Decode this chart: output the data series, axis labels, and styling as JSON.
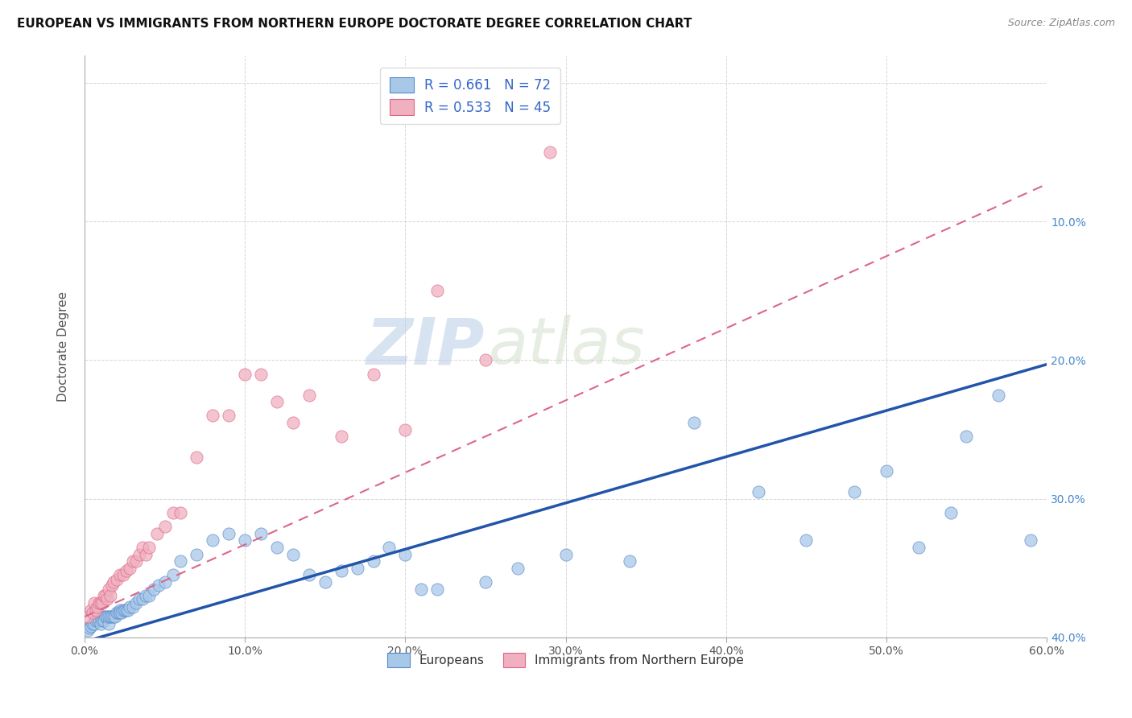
{
  "title": "EUROPEAN VS IMMIGRANTS FROM NORTHERN EUROPE DOCTORATE DEGREE CORRELATION CHART",
  "source": "Source: ZipAtlas.com",
  "ylabel": "Doctorate Degree",
  "xlim": [
    0.0,
    0.6
  ],
  "ylim": [
    0.0,
    0.42
  ],
  "xticks": [
    0.0,
    0.1,
    0.2,
    0.3,
    0.4,
    0.5,
    0.6
  ],
  "yticks": [
    0.0,
    0.1,
    0.2,
    0.3,
    0.4
  ],
  "xtick_labels": [
    "0.0%",
    "10.0%",
    "20.0%",
    "30.0%",
    "40.0%",
    "50.0%",
    "60.0%"
  ],
  "ytick_labels_right": [
    "40.0%",
    "30.0%",
    "20.0%",
    "10.0%",
    ""
  ],
  "blue_R": 0.661,
  "blue_N": 72,
  "pink_R": 0.533,
  "pink_N": 45,
  "blue_color": "#a8c8e8",
  "pink_color": "#f0b0c0",
  "blue_edge_color": "#5588cc",
  "pink_edge_color": "#dd6688",
  "blue_line_color": "#2255aa",
  "pink_line_color": "#dd6688",
  "watermark_zip": "ZIP",
  "watermark_atlas": "atlas",
  "legend_label_blue": "Europeans",
  "legend_label_pink": "Immigrants from Northern Europe",
  "blue_x": [
    0.002,
    0.003,
    0.004,
    0.005,
    0.006,
    0.007,
    0.008,
    0.009,
    0.01,
    0.01,
    0.011,
    0.012,
    0.012,
    0.013,
    0.014,
    0.015,
    0.015,
    0.016,
    0.017,
    0.018,
    0.019,
    0.02,
    0.021,
    0.022,
    0.022,
    0.023,
    0.024,
    0.025,
    0.026,
    0.027,
    0.028,
    0.03,
    0.032,
    0.034,
    0.036,
    0.038,
    0.04,
    0.043,
    0.046,
    0.05,
    0.055,
    0.06,
    0.07,
    0.08,
    0.09,
    0.1,
    0.11,
    0.12,
    0.13,
    0.14,
    0.15,
    0.16,
    0.17,
    0.18,
    0.19,
    0.2,
    0.21,
    0.22,
    0.25,
    0.27,
    0.3,
    0.34,
    0.38,
    0.42,
    0.45,
    0.48,
    0.5,
    0.52,
    0.54,
    0.55,
    0.57,
    0.59
  ],
  "blue_y": [
    0.005,
    0.007,
    0.008,
    0.01,
    0.01,
    0.012,
    0.012,
    0.013,
    0.01,
    0.015,
    0.012,
    0.015,
    0.012,
    0.015,
    0.015,
    0.01,
    0.015,
    0.015,
    0.015,
    0.015,
    0.015,
    0.018,
    0.018,
    0.02,
    0.018,
    0.018,
    0.02,
    0.02,
    0.02,
    0.02,
    0.022,
    0.022,
    0.025,
    0.028,
    0.028,
    0.03,
    0.03,
    0.035,
    0.038,
    0.04,
    0.045,
    0.055,
    0.06,
    0.07,
    0.075,
    0.07,
    0.075,
    0.065,
    0.06,
    0.045,
    0.04,
    0.048,
    0.05,
    0.055,
    0.065,
    0.06,
    0.035,
    0.035,
    0.04,
    0.05,
    0.06,
    0.055,
    0.155,
    0.105,
    0.07,
    0.105,
    0.12,
    0.065,
    0.09,
    0.145,
    0.175,
    0.07
  ],
  "pink_x": [
    0.002,
    0.004,
    0.005,
    0.006,
    0.007,
    0.008,
    0.009,
    0.01,
    0.011,
    0.012,
    0.013,
    0.014,
    0.015,
    0.016,
    0.017,
    0.018,
    0.02,
    0.022,
    0.024,
    0.026,
    0.028,
    0.03,
    0.032,
    0.034,
    0.036,
    0.038,
    0.04,
    0.045,
    0.05,
    0.055,
    0.06,
    0.07,
    0.08,
    0.09,
    0.1,
    0.11,
    0.12,
    0.13,
    0.14,
    0.16,
    0.18,
    0.2,
    0.22,
    0.25,
    0.29
  ],
  "pink_y": [
    0.015,
    0.02,
    0.018,
    0.025,
    0.02,
    0.022,
    0.025,
    0.025,
    0.025,
    0.03,
    0.03,
    0.028,
    0.035,
    0.03,
    0.038,
    0.04,
    0.042,
    0.045,
    0.045,
    0.048,
    0.05,
    0.055,
    0.055,
    0.06,
    0.065,
    0.06,
    0.065,
    0.075,
    0.08,
    0.09,
    0.09,
    0.13,
    0.16,
    0.16,
    0.19,
    0.19,
    0.17,
    0.155,
    0.175,
    0.145,
    0.19,
    0.15,
    0.25,
    0.2,
    0.35
  ],
  "blue_line_slope": 0.3333,
  "blue_line_intercept": -0.003,
  "pink_line_slope": 0.52,
  "pink_line_intercept": 0.015
}
